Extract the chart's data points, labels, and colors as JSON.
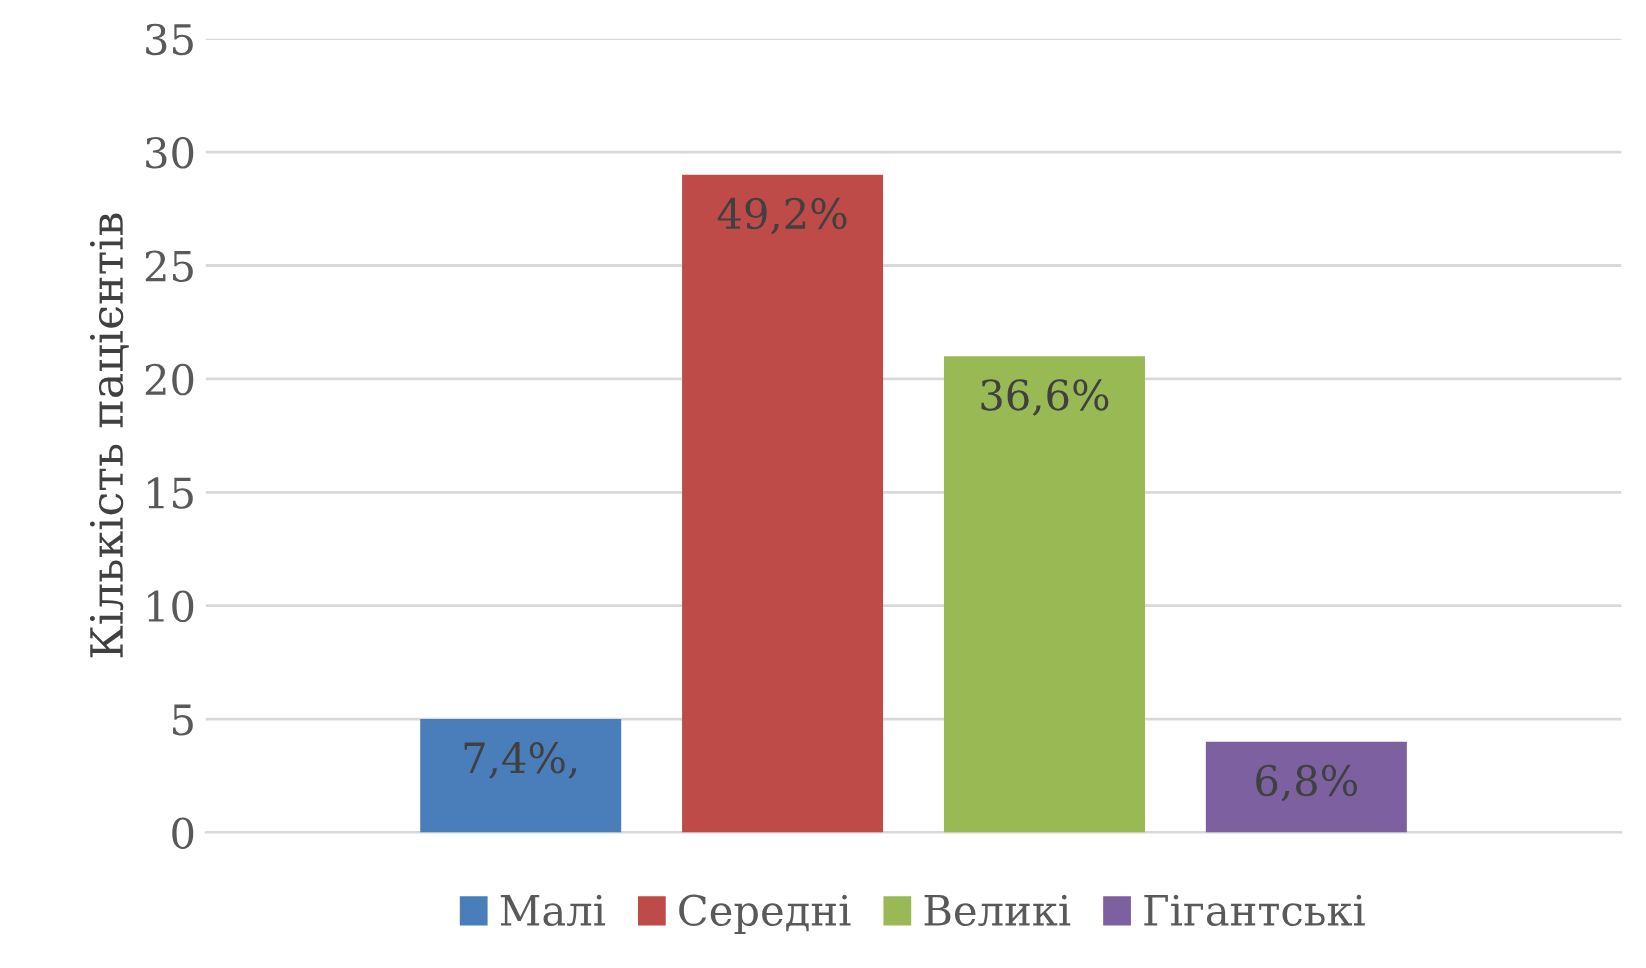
{
  "chart_data": {
    "type": "bar",
    "ylabel": "Кількість пацієнтів",
    "categories": [
      null
    ],
    "series": [
      {
        "name": "Малі",
        "color": "#4a7ebb",
        "values": [
          5
        ]
      },
      {
        "name": "Середні",
        "color": "#be4b48",
        "values": [
          29
        ]
      },
      {
        "name": "Великі",
        "color": "#98b954",
        "values": [
          21
        ]
      },
      {
        "name": "Гігантські",
        "color": "#7d60a0",
        "values": [
          4
        ]
      }
    ],
    "annotations": [
      "7,4%,",
      "49,2%",
      "36,6%",
      "6,8%"
    ],
    "ylim": [
      0,
      35
    ],
    "yticks": [
      0,
      5,
      10,
      15,
      20,
      25,
      30,
      35
    ],
    "grid": "y",
    "legend": "bottom"
  }
}
